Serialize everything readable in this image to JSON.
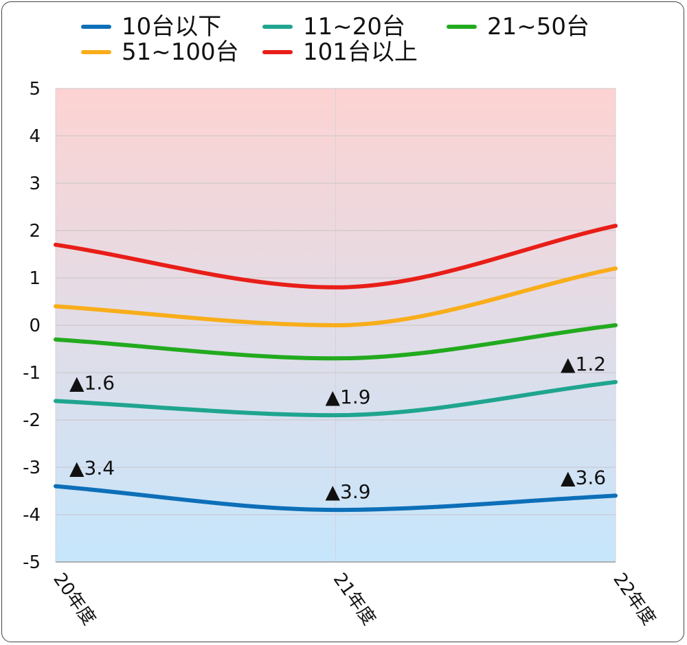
{
  "chart_data": {
    "type": "line",
    "categories": [
      "20年度",
      "21年度",
      "22年度"
    ],
    "ylim": [
      -5,
      5
    ],
    "yticks": [
      "5",
      "4",
      "3",
      "2",
      "1",
      "0",
      "-1",
      "-2",
      "-3",
      "-4",
      "-5"
    ],
    "grid": true,
    "legend_position": "top",
    "background_gradient": {
      "top": "#fdd3d2",
      "bottom": "#c6e6fc"
    },
    "series": [
      {
        "name": "10台以下",
        "color": "#0d6fb8",
        "values": [
          -3.4,
          -3.9,
          -3.6
        ]
      },
      {
        "name": "11~20台",
        "color": "#1fa58f",
        "values": [
          -1.6,
          -1.9,
          -1.2
        ]
      },
      {
        "name": "21~50台",
        "color": "#22aa1e",
        "values": [
          -0.3,
          -0.7,
          0.0
        ]
      },
      {
        "name": "51~100台",
        "color": "#f8ad1a",
        "values": [
          0.4,
          0.0,
          1.2
        ]
      },
      {
        "name": "101台以上",
        "color": "#e81e18",
        "values": [
          1.7,
          0.8,
          2.1
        ]
      }
    ],
    "annotations": [
      {
        "series": "11~20台",
        "category": "20年度",
        "text": "▲1.6"
      },
      {
        "series": "11~20台",
        "category": "21年度",
        "text": "▲1.9"
      },
      {
        "series": "11~20台",
        "category": "22年度",
        "text": "▲1.2"
      },
      {
        "series": "10台以下",
        "category": "20年度",
        "text": "▲3.4"
      },
      {
        "series": "10台以下",
        "category": "21年度",
        "text": "▲3.9"
      },
      {
        "series": "10台以下",
        "category": "22年度",
        "text": "▲3.6"
      }
    ]
  }
}
